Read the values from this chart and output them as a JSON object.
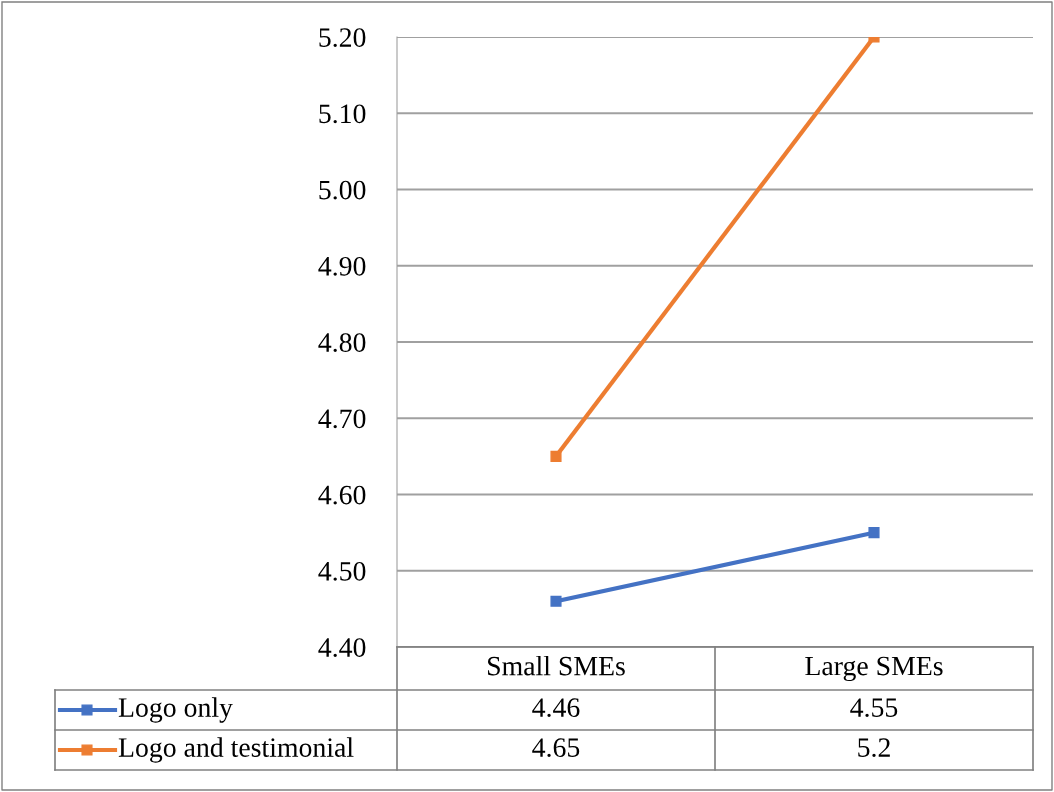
{
  "chart_data": {
    "type": "line",
    "categories": [
      "Small SMEs",
      "Large SMEs"
    ],
    "series": [
      {
        "name": "Logo only",
        "color": "#4472c4",
        "values": [
          4.46,
          4.55
        ]
      },
      {
        "name": "Logo and testimonial",
        "color": "#ed7d31",
        "values": [
          4.65,
          5.2
        ]
      }
    ],
    "ylim": [
      4.4,
      5.2
    ],
    "yticks": [
      {
        "value": 4.4,
        "label": "4.40"
      },
      {
        "value": 4.5,
        "label": "4.50"
      },
      {
        "value": 4.6,
        "label": "4.60"
      },
      {
        "value": 4.7,
        "label": "4.70"
      },
      {
        "value": 4.8,
        "label": "4.80"
      },
      {
        "value": 4.9,
        "label": "4.90"
      },
      {
        "value": 5.0,
        "label": "5.00"
      },
      {
        "value": 5.1,
        "label": "5.10"
      },
      {
        "value": 5.2,
        "label": "5.20"
      }
    ],
    "grid": "y",
    "marker": "square",
    "line_style": "solid",
    "legend": "bottom",
    "data_labels": true
  }
}
